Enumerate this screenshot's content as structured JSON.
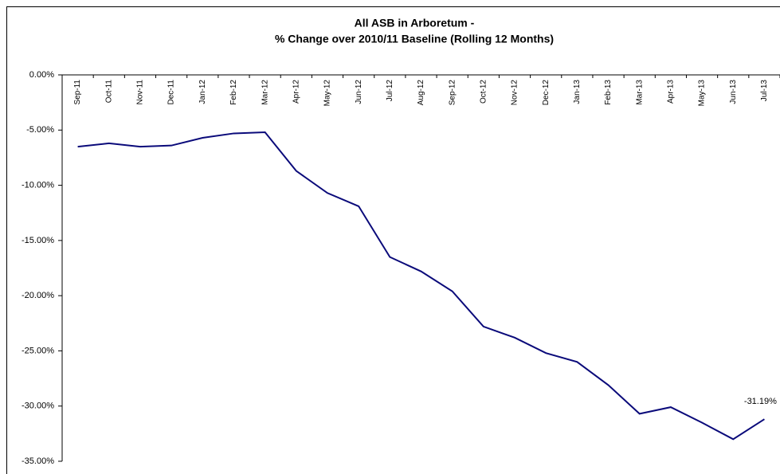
{
  "chart_data": {
    "type": "line",
    "title": "All ASB in Arboretum -",
    "subtitle": "% Change over 2010/11 Baseline (Rolling 12 Months)",
    "categories": [
      "Sep-11",
      "Oct-11",
      "Nov-11",
      "Dec-11",
      "Jan-12",
      "Feb-12",
      "Mar-12",
      "Apr-12",
      "May-12",
      "Jun-12",
      "Jul-12",
      "Aug-12",
      "Sep-12",
      "Oct-12",
      "Nov-12",
      "Dec-12",
      "Jan-13",
      "Feb-13",
      "Mar-13",
      "Apr-13",
      "May-13",
      "Jun-13",
      "Jul-13"
    ],
    "series": [
      {
        "name": "ASB",
        "color": "#0a0a7a",
        "values": [
          -6.5,
          -6.2,
          -6.5,
          -6.4,
          -5.7,
          -5.3,
          -5.2,
          -8.7,
          -10.7,
          -11.9,
          -16.5,
          -17.8,
          -19.6,
          -22.8,
          -23.8,
          -25.2,
          -26.0,
          -28.1,
          -30.7,
          -30.1,
          -31.5,
          -33.0,
          -31.19
        ],
        "value_labels": [
          null,
          null,
          null,
          null,
          null,
          null,
          null,
          null,
          null,
          null,
          null,
          null,
          null,
          null,
          null,
          null,
          null,
          null,
          null,
          null,
          null,
          null,
          "-31.19%"
        ]
      }
    ],
    "ylim": [
      -35,
      0
    ],
    "yticks": [
      {
        "value": 0,
        "label": "0.00%"
      },
      {
        "value": -5,
        "label": "-5.00%"
      },
      {
        "value": -10,
        "label": "-10.00%"
      },
      {
        "value": -15,
        "label": "-15.00%"
      },
      {
        "value": -20,
        "label": "-20.00%"
      },
      {
        "value": -25,
        "label": "-25.00%"
      },
      {
        "value": -30,
        "label": "-30.00%"
      },
      {
        "value": -35,
        "label": "-35.00%"
      }
    ],
    "grid": false
  }
}
